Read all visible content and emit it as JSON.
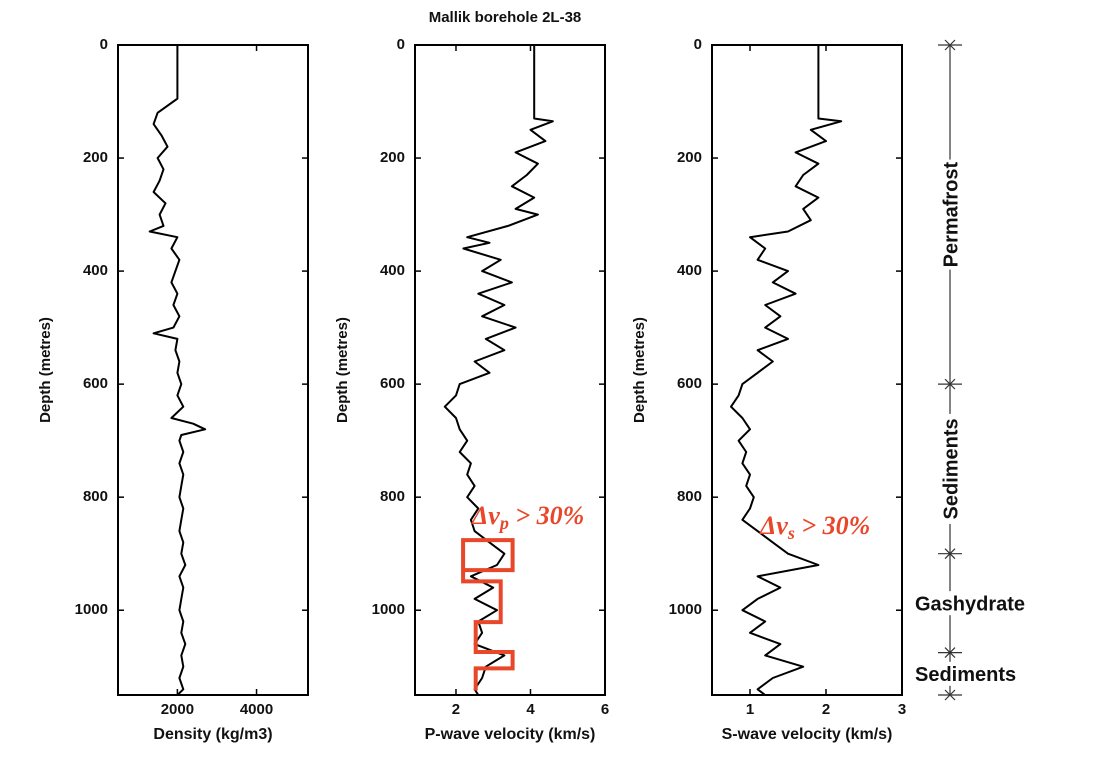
{
  "title": "Mallik borehole 2L-38",
  "chart_data": [
    {
      "type": "line",
      "xlabel": "Density (kg/m3)",
      "ylabel": "Depth (metres)",
      "color": "#000000",
      "xlim": [
        500,
        5300
      ],
      "xticks": [
        2000,
        4000
      ],
      "ylim": [
        0,
        1150
      ],
      "yticks": [
        0,
        200,
        400,
        600,
        800,
        1000
      ],
      "y_inverted": true,
      "depths": [
        0,
        95,
        100,
        120,
        140,
        160,
        180,
        200,
        220,
        240,
        260,
        280,
        300,
        320,
        330,
        340,
        360,
        380,
        400,
        420,
        440,
        460,
        480,
        500,
        510,
        520,
        540,
        560,
        580,
        600,
        620,
        640,
        660,
        670,
        680,
        690,
        700,
        720,
        740,
        760,
        780,
        800,
        820,
        840,
        860,
        880,
        900,
        920,
        940,
        960,
        980,
        1000,
        1020,
        1040,
        1060,
        1080,
        1100,
        1120,
        1140,
        1150
      ],
      "values": [
        2000,
        2000,
        1900,
        1500,
        1400,
        1600,
        1750,
        1500,
        1650,
        1550,
        1400,
        1700,
        1550,
        1650,
        1300,
        2000,
        1850,
        2050,
        1950,
        1850,
        2000,
        1900,
        2050,
        1900,
        1400,
        2000,
        1950,
        2050,
        2000,
        2100,
        2000,
        2150,
        1850,
        2400,
        2700,
        2100,
        2050,
        2150,
        2050,
        2150,
        2100,
        2050,
        2150,
        2100,
        2050,
        2150,
        2100,
        2200,
        2050,
        2150,
        2100,
        2050,
        2150,
        2100,
        2200,
        2100,
        2150,
        2050,
        2150,
        2000
      ]
    },
    {
      "type": "line",
      "xlabel": "P-wave velocity (km/s)",
      "ylabel": "Depth (metres)",
      "color": "#000000",
      "xlim": [
        0.9,
        6
      ],
      "xticks": [
        2,
        4,
        6
      ],
      "ylim": [
        0,
        1150
      ],
      "yticks": [
        0,
        200,
        400,
        600,
        800,
        1000
      ],
      "y_inverted": true,
      "depths": [
        0,
        130,
        135,
        150,
        170,
        190,
        210,
        230,
        250,
        270,
        290,
        300,
        320,
        340,
        350,
        360,
        380,
        400,
        420,
        440,
        460,
        480,
        500,
        520,
        540,
        560,
        580,
        600,
        620,
        640,
        660,
        680,
        700,
        720,
        740,
        760,
        780,
        800,
        820,
        840,
        860,
        880,
        900,
        920,
        940,
        960,
        980,
        1000,
        1020,
        1040,
        1060,
        1080,
        1100,
        1120,
        1140,
        1150
      ],
      "values": [
        4.1,
        4.1,
        4.6,
        4.0,
        4.4,
        3.6,
        4.2,
        3.9,
        3.5,
        4.1,
        3.6,
        4.2,
        3.4,
        2.3,
        2.9,
        2.2,
        3.2,
        2.7,
        3.5,
        2.6,
        3.3,
        2.7,
        3.6,
        2.8,
        3.3,
        2.5,
        2.9,
        2.1,
        2.0,
        1.7,
        2.0,
        2.1,
        2.3,
        2.1,
        2.4,
        2.3,
        2.5,
        2.3,
        2.6,
        2.4,
        2.5,
        2.9,
        3.3,
        3.1,
        2.4,
        3.0,
        2.5,
        3.1,
        2.6,
        2.7,
        2.5,
        3.3,
        2.8,
        2.7,
        2.5,
        2.6
      ],
      "highlight": {
        "color": "#e8472a",
        "values": [
          2.19,
          2.19,
          3.52,
          3.52,
          2.19,
          2.19,
          3.2,
          3.2,
          2.53,
          2.53,
          3.52,
          3.52,
          2.53,
          2.53
        ],
        "depths": [
          929,
          876,
          876,
          929,
          929,
          949,
          949,
          1021,
          1021,
          1074,
          1074,
          1103,
          1103,
          1142
        ]
      },
      "annotation": {
        "color": "#e8472a",
        "parts": [
          "Δv",
          "p",
          " > 30%"
        ]
      }
    },
    {
      "type": "line",
      "xlabel": "S-wave velocity (km/s)",
      "ylabel": "Depth (metres)",
      "color": "#000000",
      "xlim": [
        0.5,
        3
      ],
      "xticks": [
        1,
        2,
        3
      ],
      "ylim": [
        0,
        1150
      ],
      "yticks": [
        0,
        200,
        400,
        600,
        800,
        1000
      ],
      "y_inverted": true,
      "depths": [
        0,
        130,
        135,
        150,
        170,
        190,
        210,
        230,
        250,
        270,
        290,
        310,
        330,
        340,
        360,
        380,
        400,
        420,
        440,
        460,
        480,
        500,
        520,
        540,
        560,
        580,
        600,
        620,
        640,
        660,
        680,
        700,
        720,
        740,
        760,
        780,
        800,
        820,
        840,
        860,
        880,
        900,
        920,
        940,
        960,
        980,
        1000,
        1020,
        1040,
        1060,
        1080,
        1100,
        1120,
        1140,
        1150
      ],
      "values": [
        1.9,
        1.9,
        2.2,
        1.8,
        2.0,
        1.6,
        1.9,
        1.7,
        1.6,
        1.9,
        1.7,
        1.8,
        1.5,
        1.0,
        1.2,
        1.1,
        1.5,
        1.3,
        1.6,
        1.2,
        1.4,
        1.2,
        1.5,
        1.1,
        1.3,
        1.1,
        0.9,
        0.85,
        0.75,
        0.9,
        1.0,
        0.85,
        0.95,
        0.9,
        1.0,
        0.95,
        1.05,
        1.0,
        0.9,
        1.1,
        1.3,
        1.5,
        1.9,
        1.1,
        1.4,
        1.1,
        0.9,
        1.2,
        1.0,
        1.4,
        1.2,
        1.7,
        1.3,
        1.1,
        1.2
      ],
      "annotation": {
        "color": "#e8472a",
        "parts": [
          "Δv",
          "s",
          " > 30%"
        ]
      }
    }
  ],
  "depth_zones": {
    "boundaries": [
      0,
      600,
      900,
      1075,
      1150
    ],
    "labels": [
      "Permafrost",
      "Sediments",
      "Gashydrate",
      "Sediments"
    ]
  }
}
